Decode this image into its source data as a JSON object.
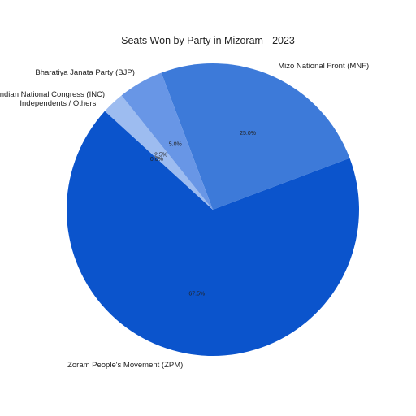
{
  "chart_data": {
    "type": "pie",
    "title": "Seats Won by Party in Mizoram - 2023",
    "slices": [
      {
        "label": "Mizo National Front (MNF)",
        "value": 25.0,
        "pct_label": "25.0%",
        "color": "#3d7ad9"
      },
      {
        "label": "Zoram People's Movement (ZPM)",
        "value": 67.5,
        "pct_label": "67.5%",
        "color": "#0b54cc"
      },
      {
        "label": "Independents / Others",
        "value": 0.0,
        "pct_label": "0.0%",
        "color": "#d2e0f8"
      },
      {
        "label": "Indian National Congress (INC)",
        "value": 2.5,
        "pct_label": "2.5%",
        "color": "#9dbcf0"
      },
      {
        "label": "Bharatiya Janata Party (BJP)",
        "value": 5.0,
        "pct_label": "5.0%",
        "color": "#6896e6"
      }
    ]
  }
}
